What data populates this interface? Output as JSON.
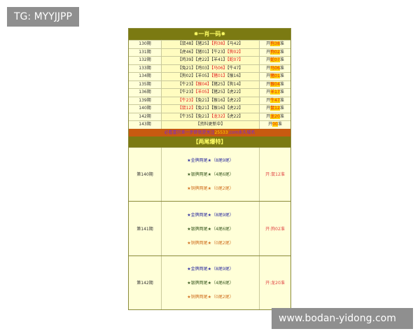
{
  "watermark_top": "TG: MYYJJPP",
  "watermark_bottom": "www.bodan-yidong.com",
  "section1": {
    "title": "✹一肖一码✹",
    "rows": [
      {
        "period": "130期",
        "picks": [
          "【鼠48】",
          "【猪25】",
          "【狗38】",
          "【马42】"
        ],
        "hit": 2,
        "result_prefix": "开",
        "result": "狗38",
        "result_suffix": "准"
      },
      {
        "period": "131期",
        "picks": [
          "【虎46】",
          "【猪01】",
          "【牛23】",
          "【狗02】"
        ],
        "hit": 3,
        "result_prefix": "开",
        "result": "狗02",
        "result_suffix": "准"
      },
      {
        "period": "132期",
        "picks": [
          "【鸡39】",
          "【虎22】",
          "【羊41】",
          "【蛇07】"
        ],
        "hit": 3,
        "result_prefix": "开",
        "result": "蛇07",
        "result_suffix": "准"
      },
      {
        "period": "133期",
        "picks": [
          "【兔21】",
          "【鸡03】",
          "【马06】",
          "【牛47】"
        ],
        "hit": 2,
        "result_prefix": "开",
        "result": "马06",
        "result_suffix": "准"
      },
      {
        "period": "134期",
        "picks": [
          "【狗02】",
          "【羊05】",
          "【猪01】",
          "【猴16】"
        ],
        "hit": 2,
        "result_prefix": "开",
        "result": "猪01",
        "result_suffix": "准"
      },
      {
        "period": "135期",
        "picks": [
          "【牛23】",
          "【猴04】",
          "【猪25】",
          "【狗14】"
        ],
        "hit": 1,
        "result_prefix": "开",
        "result": "猴04",
        "result_suffix": "准"
      },
      {
        "period": "136期",
        "picks": [
          "【牛23】",
          "【羊05】",
          "【猪25】",
          "【虎22】"
        ],
        "hit": 1,
        "result_prefix": "开",
        "result": "羊17",
        "result_suffix": "准"
      },
      {
        "period": "139期",
        "picks": [
          "【牛23】",
          "【兔21】",
          "【猴16】",
          "【虎22】"
        ],
        "hit": 0,
        "result_prefix": "开",
        "result": "牛47",
        "result_suffix": "准"
      },
      {
        "period": "140期",
        "picks": [
          "【鼠12】",
          "【兔21】",
          "【猴16】",
          "【虎22】"
        ],
        "hit": 0,
        "result_prefix": "开",
        "result": "鼠12",
        "result_suffix": "准"
      },
      {
        "period": "142期",
        "picks": [
          "【牛35】",
          "【兔21】",
          "【龙32】",
          "【虎22】"
        ],
        "hit": 2,
        "result_prefix": "开",
        "result": "龙20",
        "result_suffix": "准"
      }
    ],
    "pending": {
      "period": "143期",
      "text": "【资料更新中】",
      "result_prefix": "开",
      "result": "00",
      "result_suffix": "准"
    }
  },
  "banner": {
    "text_before": "必看富只差一步即就是关注",
    "domain": "25533",
    "text_after": ".com永久域名"
  },
  "section2": {
    "title": "【两尾爆特】",
    "blocks": [
      {
        "period": "第140期",
        "gold": "★金牌两尾★（8尾9尾）",
        "silver": "★银牌两尾★（4尾6尾）",
        "bronze": "★铜牌两尾★（0尾2尾）",
        "result": "开:鼠12准"
      },
      {
        "period": "第141期",
        "gold": "★金牌两尾★（8尾9尾）",
        "silver": "★银牌两尾★（4尾6尾）",
        "bronze": "★铜牌两尾★（0尾2尾）",
        "result": "开:狗02准"
      },
      {
        "period": "第142期",
        "gold": "★金牌两尾★（8尾9尾）",
        "silver": "★银牌两尾★（4尾6尾）",
        "bronze": "★铜牌两尾★（0尾2尾）",
        "result": "开:龙20准"
      }
    ]
  }
}
